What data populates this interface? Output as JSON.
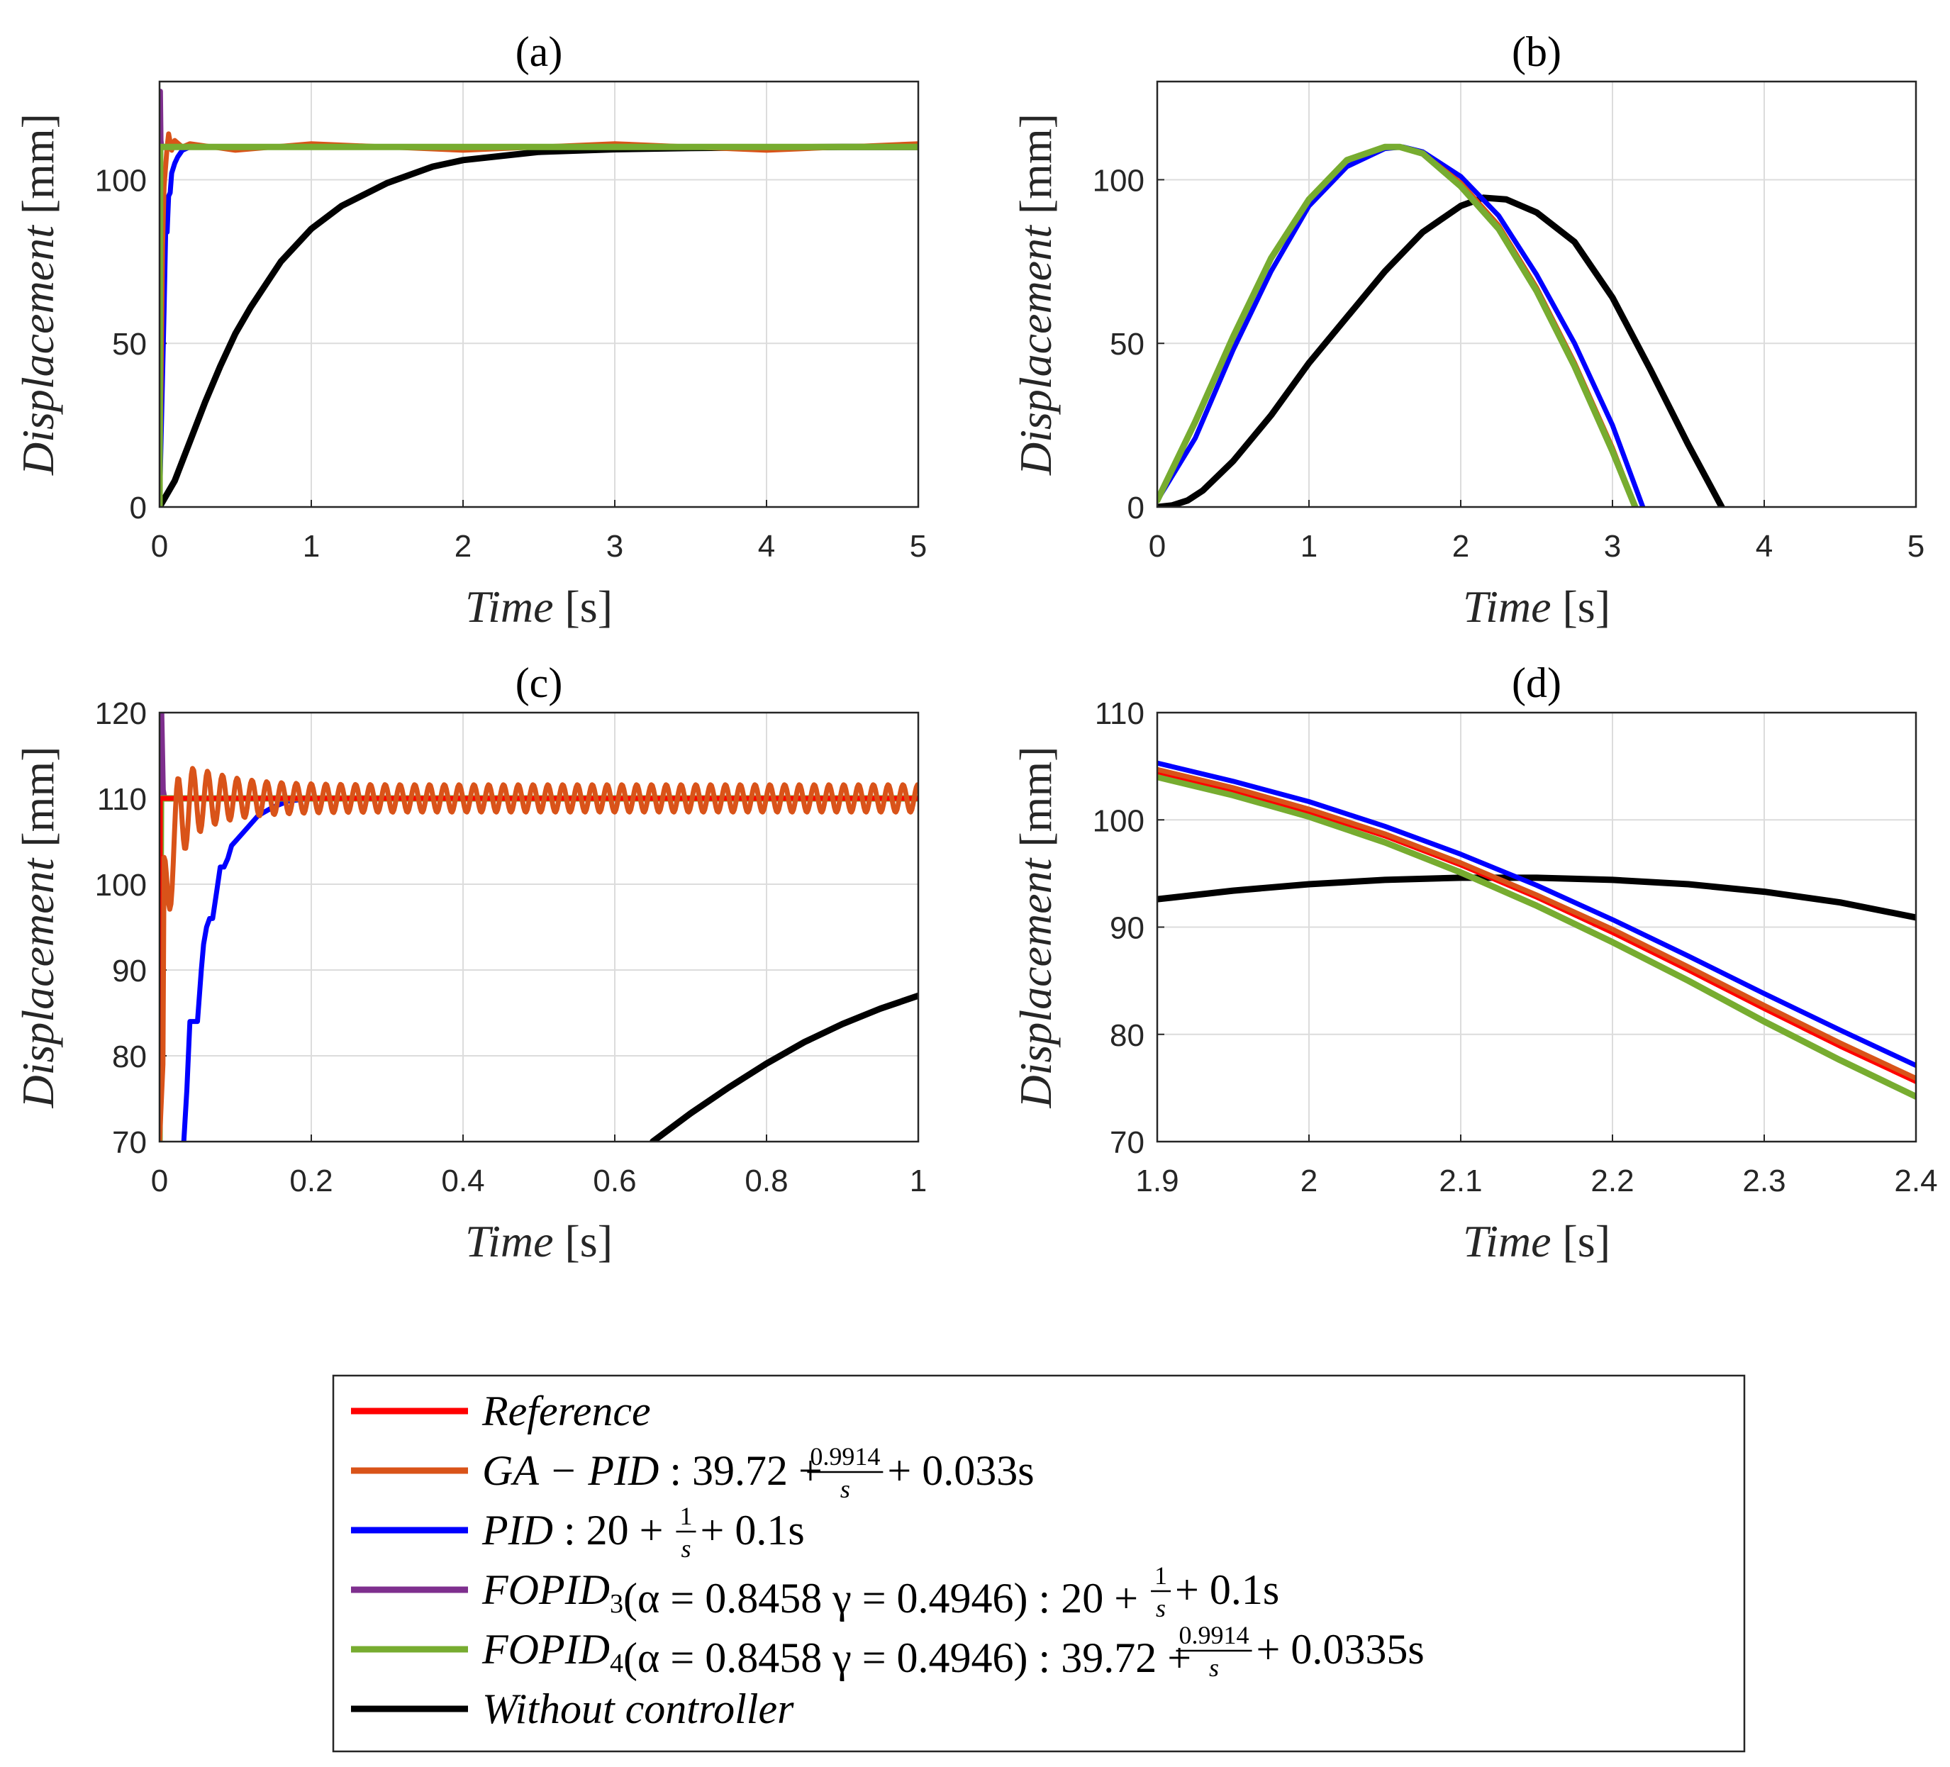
{
  "chart_data": [
    {
      "id": "a",
      "type": "line",
      "title": "(a)",
      "xlabel_main": "Time",
      "xlabel_unit": "[s]",
      "ylabel_main": "Displacement",
      "ylabel_unit": "[mm]",
      "xlim": [
        0,
        5
      ],
      "ylim": [
        0,
        130
      ],
      "xticks": [
        0,
        1,
        2,
        3,
        4,
        5
      ],
      "xtick_labels": [
        "0",
        "1",
        "2",
        "3",
        "4",
        "5"
      ],
      "yticks": [
        0,
        50,
        100
      ],
      "ytick_labels": [
        "0",
        "50",
        "100"
      ],
      "grid": true,
      "series": [
        {
          "name": "Without controller",
          "color": "#000000",
          "x": [
            0,
            0.1,
            0.2,
            0.3,
            0.4,
            0.5,
            0.6,
            0.8,
            1.0,
            1.2,
            1.5,
            1.8,
            2.0,
            2.5,
            3.0,
            3.5,
            4.0,
            4.5,
            5.0
          ],
          "y": [
            0,
            8,
            20,
            32,
            43,
            53,
            61,
            75,
            85,
            92,
            99,
            104,
            106,
            108.5,
            109.3,
            109.7,
            109.9,
            110,
            110
          ]
        },
        {
          "name": "PID",
          "color": "#0000ff",
          "x": [
            0,
            0.03,
            0.04,
            0.05,
            0.06,
            0.07,
            0.08,
            0.1,
            0.12,
            0.15,
            0.2,
            0.3,
            5.0
          ],
          "y": [
            0,
            60,
            84,
            84,
            95,
            96,
            102,
            105,
            107,
            109,
            110,
            110,
            110
          ]
        },
        {
          "name": "GA-PID",
          "color": "#d95319",
          "x": [
            0,
            0.02,
            0.03,
            0.05,
            0.06,
            0.08,
            0.1,
            0.15,
            0.2,
            0.5,
            1,
            2,
            3,
            4,
            5
          ],
          "y": [
            0,
            80,
            98,
            110,
            114,
            109,
            112,
            110,
            111,
            109,
            111,
            109,
            111,
            109,
            111
          ]
        },
        {
          "name": "FOPID3",
          "color": "#7e2f8e",
          "x": [
            0,
            0.003,
            0.006,
            0.01,
            0.015
          ],
          "y": [
            0,
            127,
            127,
            112,
            110
          ]
        },
        {
          "name": "FOPID4",
          "color": "#77ac30",
          "x": [
            0,
            0.004,
            0.01,
            5.0
          ],
          "y": [
            0,
            110,
            110,
            110
          ]
        }
      ]
    },
    {
      "id": "b",
      "type": "line",
      "title": "(b)",
      "xlabel_main": "Time",
      "xlabel_unit": "[s]",
      "ylabel_main": "Displacement",
      "ylabel_unit": "[mm]",
      "xlim": [
        0,
        5
      ],
      "ylim": [
        0,
        130
      ],
      "xticks": [
        0,
        1,
        2,
        3,
        4,
        5
      ],
      "xtick_labels": [
        "0",
        "1",
        "2",
        "3",
        "4",
        "5"
      ],
      "yticks": [
        0,
        50,
        100
      ],
      "ytick_labels": [
        "0",
        "50",
        "100"
      ],
      "grid": true,
      "series": [
        {
          "name": "Without controller",
          "color": "#000000",
          "x": [
            0,
            0.1,
            0.2,
            0.3,
            0.5,
            0.75,
            1.0,
            1.25,
            1.5,
            1.75,
            2.0,
            2.15,
            2.3,
            2.5,
            2.75,
            3.0,
            3.25,
            3.5,
            3.72
          ],
          "y": [
            0,
            0.5,
            2,
            5,
            14,
            28,
            44,
            58,
            72,
            84,
            92,
            94.5,
            94,
            90,
            81,
            64,
            42,
            19,
            0
          ]
        },
        {
          "name": "PID",
          "color": "#0000ff",
          "x": [
            0,
            0.25,
            0.5,
            0.75,
            1.0,
            1.25,
            1.5,
            1.62,
            1.75,
            2.0,
            2.25,
            2.5,
            2.75,
            3.0,
            3.2
          ],
          "y": [
            2,
            21,
            48,
            72,
            92,
            104,
            109.5,
            110,
            108.5,
            101,
            89,
            71,
            50,
            25,
            0
          ]
        },
        {
          "name": "Reference",
          "color": "#ff0000",
          "x": [
            0,
            0.25,
            0.5,
            0.75,
            1.0,
            1.25,
            1.5,
            1.6,
            1.75,
            2.0,
            2.25,
            2.5,
            2.75,
            3.0,
            3.15
          ],
          "y": [
            2,
            26,
            52,
            76,
            94,
            106,
            110,
            110,
            108,
            99,
            86,
            67,
            44,
            18,
            0
          ]
        },
        {
          "name": "GA-PID",
          "color": "#d95319",
          "x": [
            0,
            0.25,
            0.5,
            0.75,
            1.0,
            1.25,
            1.5,
            1.6,
            1.75,
            2.0,
            2.25,
            2.5,
            2.75,
            3.0,
            3.15
          ],
          "y": [
            2,
            26,
            52,
            76,
            94,
            106,
            110,
            110,
            108,
            99,
            86,
            67,
            44,
            18,
            0
          ]
        },
        {
          "name": "FOPID4",
          "color": "#77ac30",
          "x": [
            0,
            0.25,
            0.5,
            0.75,
            1.0,
            1.25,
            1.5,
            1.6,
            1.75,
            2.0,
            2.25,
            2.5,
            2.75,
            3.0,
            3.15
          ],
          "y": [
            2,
            26,
            52,
            76,
            94,
            106,
            110,
            110,
            108,
            98,
            85,
            66,
            43,
            17,
            0
          ]
        }
      ]
    },
    {
      "id": "c",
      "type": "line",
      "title": "(c)",
      "xlabel_main": "Time",
      "xlabel_unit": "[s]",
      "ylabel_main": "Displacement",
      "ylabel_unit": "[mm]",
      "xlim": [
        0,
        1
      ],
      "ylim": [
        70,
        120
      ],
      "xticks": [
        0,
        0.2,
        0.4,
        0.6,
        0.8,
        1.0
      ],
      "xtick_labels": [
        "0",
        "0.2",
        "0.4",
        "0.6",
        "0.8",
        "1"
      ],
      "yticks": [
        70,
        80,
        90,
        100,
        110,
        120
      ],
      "ytick_labels": [
        "70",
        "80",
        "90",
        "100",
        "110",
        "120"
      ],
      "grid": true,
      "series": [
        {
          "name": "Without controller",
          "color": "#000000",
          "x": [
            0.65,
            0.7,
            0.75,
            0.8,
            0.85,
            0.9,
            0.95,
            1.0
          ],
          "y": [
            70,
            73.3,
            76.3,
            79.1,
            81.6,
            83.7,
            85.5,
            87
          ]
        },
        {
          "name": "PID",
          "color": "#0000ff",
          "x": [
            0.032,
            0.036,
            0.04,
            0.045,
            0.05,
            0.055,
            0.058,
            0.062,
            0.066,
            0.07,
            0.075,
            0.08,
            0.085,
            0.09,
            0.095,
            0.1,
            0.11,
            0.12,
            0.13,
            0.15,
            0.17,
            0.2,
            0.25,
            0.3,
            1.0
          ],
          "y": [
            70,
            76,
            84,
            84,
            84,
            90,
            93,
            95,
            96,
            96,
            99,
            102,
            102,
            103,
            104.5,
            105,
            106,
            107,
            108,
            109,
            109.7,
            110,
            110,
            110,
            110
          ]
        },
        {
          "name": "FOPID3",
          "color": "#7e2f8e",
          "x": [
            0,
            0.0015,
            0.003,
            0.005,
            0.007
          ],
          "y": [
            70,
            120,
            120,
            111,
            110
          ]
        },
        {
          "name": "FOPID4",
          "color": "#77ac30",
          "x": [
            0,
            0.002,
            0.004,
            1.0
          ],
          "y": [
            70,
            110,
            110,
            110
          ]
        },
        {
          "name": "Reference",
          "color": "#ff0000",
          "x": [
            0,
            0.001,
            1.0
          ],
          "y": [
            70,
            110,
            110
          ]
        },
        {
          "name": "GA-PID",
          "color": "#d95319",
          "x": [
            0.005
          ],
          "y": [
            70
          ],
          "osc": true
        }
      ]
    },
    {
      "id": "d",
      "type": "line",
      "title": "(d)",
      "xlabel_main": "Time",
      "xlabel_unit": "[s]",
      "ylabel_main": "Displacement",
      "ylabel_unit": "[mm]",
      "xlim": [
        1.9,
        2.4
      ],
      "ylim": [
        70,
        110
      ],
      "xticks": [
        1.9,
        2.0,
        2.1,
        2.2,
        2.3,
        2.4
      ],
      "xtick_labels": [
        "1.9",
        "2",
        "2.1",
        "2.2",
        "2.3",
        "2.4"
      ],
      "yticks": [
        70,
        80,
        90,
        100,
        110
      ],
      "ytick_labels": [
        "70",
        "80",
        "90",
        "100",
        "110"
      ],
      "grid": true,
      "series": [
        {
          "name": "Without controller",
          "color": "#000000",
          "x": [
            1.9,
            1.95,
            2.0,
            2.05,
            2.1,
            2.15,
            2.2,
            2.25,
            2.3,
            2.35,
            2.4
          ],
          "y": [
            92.6,
            93.4,
            94.0,
            94.4,
            94.6,
            94.6,
            94.4,
            94.0,
            93.3,
            92.3,
            90.9
          ]
        },
        {
          "name": "FOPID4",
          "color": "#77ac30",
          "x": [
            1.9,
            1.95,
            2.0,
            2.05,
            2.1,
            2.15,
            2.2,
            2.25,
            2.3,
            2.35,
            2.4
          ],
          "y": [
            104.0,
            102.3,
            100.3,
            97.9,
            95.1,
            92.0,
            88.6,
            85.0,
            81.2,
            77.6,
            74.2
          ]
        },
        {
          "name": "Reference",
          "color": "#ff0000",
          "x": [
            1.9,
            1.95,
            2.0,
            2.05,
            2.1,
            2.15,
            2.2,
            2.25,
            2.3,
            2.35,
            2.4
          ],
          "y": [
            104.5,
            102.8,
            100.8,
            98.5,
            95.8,
            92.8,
            89.5,
            86.0,
            82.4,
            78.9,
            75.6
          ]
        },
        {
          "name": "GA-PID",
          "color": "#d95319",
          "x": [
            1.9,
            1.95,
            2.0,
            2.05,
            2.1,
            2.15,
            2.2,
            2.25,
            2.3,
            2.35,
            2.4
          ],
          "y": [
            104.7,
            103.0,
            101.0,
            98.7,
            96.0,
            93.0,
            89.8,
            86.3,
            82.7,
            79.2,
            75.9
          ]
        },
        {
          "name": "PID",
          "color": "#0000ff",
          "x": [
            1.9,
            1.95,
            2.0,
            2.05,
            2.1,
            2.15,
            2.2,
            2.25,
            2.3,
            2.35,
            2.4
          ],
          "y": [
            105.3,
            103.6,
            101.7,
            99.4,
            96.8,
            93.9,
            90.7,
            87.3,
            83.8,
            80.4,
            77.1
          ]
        }
      ]
    }
  ],
  "legend": {
    "placement": "bottom-center",
    "entries": [
      {
        "name": "Reference",
        "color": "#ff0000",
        "label": "Reference"
      },
      {
        "name": "GA-PID",
        "color": "#d95319",
        "label_main": "GA − PID",
        "label_mid": " : 39.72 + ",
        "frac_num": "0.9914",
        "frac_den": "s",
        "label_tail": " + 0.033s"
      },
      {
        "name": "PID",
        "color": "#0000ff",
        "label_main": "PID",
        "label_mid": " : 20 + ",
        "frac_num": "1",
        "frac_den": "s",
        "label_tail": " + 0.1s"
      },
      {
        "name": "FOPID3",
        "color": "#7e2f8e",
        "label_main": "FOPID",
        "sub": "3",
        "label_mid": "(α = 0.8458 γ = 0.4946) : 20 + ",
        "frac_num": "1",
        "frac_den": "s",
        "label_tail": " + 0.1s"
      },
      {
        "name": "FOPID4",
        "color": "#77ac30",
        "label_main": "FOPID",
        "sub": "4",
        "label_mid": "(α = 0.8458 γ = 0.4946) : 39.72 + ",
        "frac_num": "0.9914",
        "frac_den": "s",
        "label_tail": " + 0.0335s"
      },
      {
        "name": "Without controller",
        "color": "#000000",
        "label": "Without controller"
      }
    ]
  }
}
